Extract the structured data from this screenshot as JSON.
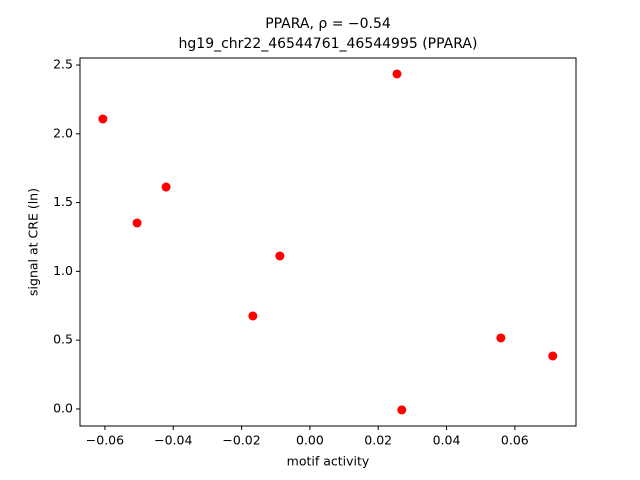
{
  "chart_data": {
    "type": "scatter",
    "title": "PPARA, ρ = −0.54",
    "subtitle": "hg19_chr22_46544761_46544995 (PPARA)",
    "x_label": "motif activity",
    "y_label": "signal at CRE (ln)",
    "color": "#ff0000",
    "x": [
      -0.0606,
      -0.0506,
      -0.0421,
      -0.0167,
      -0.0088,
      0.0255,
      0.0269,
      0.0559,
      0.0711
    ],
    "values": [
      2.108,
      1.352,
      1.613,
      0.676,
      1.112,
      2.435,
      -0.007,
      0.516,
      0.385
    ],
    "xlim": [
      -0.0673,
      0.0779
    ],
    "ylim": [
      -0.124,
      2.551
    ],
    "xticks": [
      {
        "value": -0.06,
        "label": "−0.06"
      },
      {
        "value": -0.04,
        "label": "−0.04"
      },
      {
        "value": -0.02,
        "label": "−0.02"
      },
      {
        "value": 0,
        "label": "0.00"
      },
      0.02,
      0.04,
      0.06
    ],
    "yticks": [
      {
        "value": 0,
        "label": "0.0"
      },
      0.5,
      {
        "value": 1,
        "label": "1.0"
      },
      1.5,
      {
        "value": 2,
        "label": "2.0"
      },
      2.5
    ]
  }
}
